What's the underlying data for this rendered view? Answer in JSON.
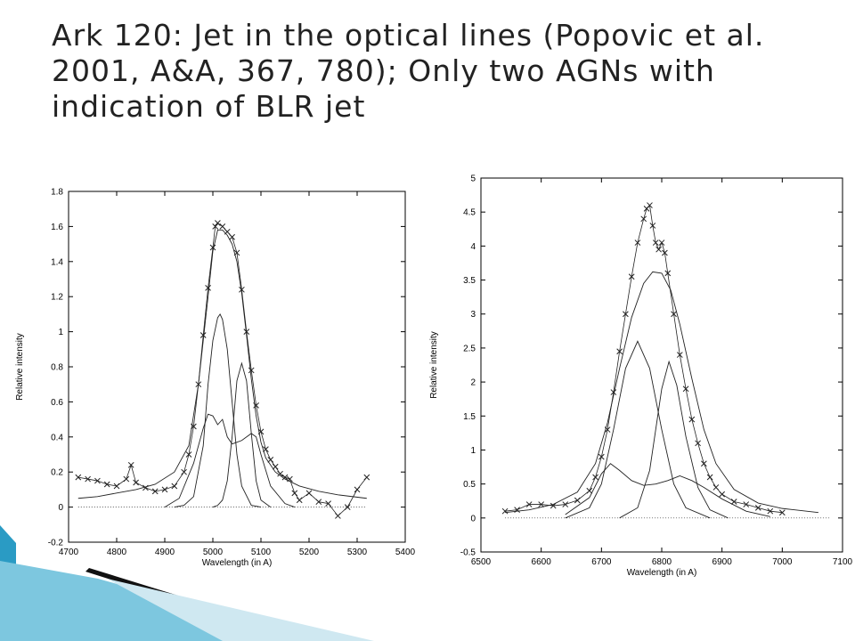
{
  "slide": {
    "title": "Ark 120: Jet in the optical lines (Popovic et al. 2001, A&A, 367, 780); Only two AGNs with indication of BLR jet"
  },
  "colors": {
    "title": "#222222",
    "accent_teal": "#2a9bc4",
    "accent_light": "#6fc3dc",
    "plot_line": "#222222"
  },
  "chart_data": [
    {
      "type": "line",
      "id": "left-hbeta",
      "xlabel": "Wavelength (in A)",
      "ylabel": "Relative intensity",
      "xlim": [
        4700,
        5400
      ],
      "ylim": [
        -0.2,
        1.8
      ],
      "xticks": [
        4700,
        4800,
        4900,
        5000,
        5100,
        5200,
        5300,
        5400
      ],
      "yticks": [
        -0.2,
        0,
        0.2,
        0.4,
        0.6,
        0.8,
        1,
        1.2,
        1.4,
        1.6,
        1.8
      ],
      "grid": false,
      "series": [
        {
          "style": "markers-x",
          "x": [
            4720,
            4740,
            4760,
            4780,
            4800,
            4820,
            4830,
            4840,
            4860,
            4880,
            4900,
            4920,
            4940,
            4950,
            4960,
            4970,
            4980,
            4990,
            5000,
            5005,
            5010,
            5020,
            5030,
            5040,
            5050,
            5060,
            5070,
            5080,
            5090,
            5100,
            5110,
            5120,
            5130,
            5140,
            5150,
            5160,
            5170,
            5180,
            5200,
            5220,
            5240,
            5260,
            5280,
            5300,
            5320
          ],
          "y": [
            0.17,
            0.16,
            0.15,
            0.13,
            0.12,
            0.16,
            0.24,
            0.14,
            0.11,
            0.09,
            0.1,
            0.12,
            0.2,
            0.3,
            0.46,
            0.7,
            0.98,
            1.25,
            1.48,
            1.6,
            1.62,
            1.6,
            1.57,
            1.54,
            1.45,
            1.24,
            1.0,
            0.78,
            0.58,
            0.43,
            0.33,
            0.27,
            0.23,
            0.19,
            0.17,
            0.16,
            0.08,
            0.04,
            0.08,
            0.03,
            0.02,
            -0.05,
            0.0,
            0.1,
            0.17
          ]
        },
        {
          "style": "solid",
          "x": [
            4720,
            4760,
            4800,
            4840,
            4880,
            4920,
            4950,
            4970,
            4990,
            5000,
            5010,
            5020,
            5030,
            5040,
            5050,
            5060,
            5070,
            5080,
            5090,
            5100,
            5110,
            5130,
            5150,
            5180,
            5220,
            5260,
            5320
          ],
          "y": [
            0.05,
            0.06,
            0.08,
            0.1,
            0.13,
            0.2,
            0.35,
            0.7,
            1.2,
            1.46,
            1.58,
            1.58,
            1.55,
            1.5,
            1.4,
            1.22,
            0.98,
            0.73,
            0.52,
            0.37,
            0.28,
            0.2,
            0.16,
            0.12,
            0.09,
            0.07,
            0.05
          ]
        },
        {
          "style": "solid",
          "x": [
            4920,
            4940,
            4960,
            4980,
            4990,
            5000,
            5010,
            5015,
            5020,
            5030,
            5040,
            5050,
            5060,
            5080,
            5100
          ],
          "y": [
            0.0,
            0.01,
            0.06,
            0.35,
            0.7,
            0.95,
            1.08,
            1.1,
            1.07,
            0.9,
            0.6,
            0.3,
            0.12,
            0.01,
            0.0
          ]
        },
        {
          "style": "solid",
          "x": [
            5000,
            5010,
            5020,
            5030,
            5040,
            5050,
            5060,
            5070,
            5080,
            5090,
            5100,
            5120
          ],
          "y": [
            0.0,
            0.01,
            0.04,
            0.15,
            0.4,
            0.72,
            0.82,
            0.72,
            0.42,
            0.15,
            0.04,
            0.0
          ]
        },
        {
          "style": "solid",
          "x": [
            4900,
            4930,
            4960,
            4980,
            4990,
            5000,
            5010,
            5020,
            5030,
            5040,
            5060,
            5080,
            5090,
            5100,
            5120,
            5150,
            5170
          ],
          "y": [
            0.0,
            0.05,
            0.25,
            0.45,
            0.53,
            0.52,
            0.47,
            0.5,
            0.4,
            0.36,
            0.38,
            0.42,
            0.4,
            0.3,
            0.12,
            0.02,
            0.0
          ]
        },
        {
          "style": "dotted",
          "x": [
            4720,
            5320
          ],
          "y": [
            0.0,
            0.0
          ]
        }
      ]
    },
    {
      "type": "line",
      "id": "right-halpha",
      "xlabel": "Wavelength (in A)",
      "ylabel": "Relative intensity",
      "xlim": [
        6500,
        7100
      ],
      "ylim": [
        -0.5,
        5
      ],
      "xticks": [
        6500,
        6600,
        6700,
        6800,
        6900,
        7000,
        7100
      ],
      "yticks": [
        -0.5,
        0,
        0.5,
        1,
        1.5,
        2,
        2.5,
        3,
        3.5,
        4,
        4.5,
        5
      ],
      "grid": false,
      "series": [
        {
          "style": "markers-x",
          "x": [
            6540,
            6560,
            6580,
            6600,
            6620,
            6640,
            6660,
            6680,
            6690,
            6700,
            6710,
            6720,
            6730,
            6740,
            6750,
            6760,
            6770,
            6775,
            6780,
            6785,
            6790,
            6795,
            6800,
            6805,
            6810,
            6820,
            6830,
            6840,
            6850,
            6860,
            6870,
            6880,
            6890,
            6900,
            6920,
            6940,
            6960,
            6980,
            7000
          ],
          "y": [
            0.1,
            0.12,
            0.2,
            0.2,
            0.18,
            0.2,
            0.26,
            0.4,
            0.6,
            0.9,
            1.3,
            1.85,
            2.45,
            3.0,
            3.55,
            4.05,
            4.4,
            4.55,
            4.6,
            4.3,
            4.05,
            3.95,
            4.05,
            3.9,
            3.6,
            3.0,
            2.4,
            1.9,
            1.45,
            1.1,
            0.8,
            0.6,
            0.45,
            0.35,
            0.24,
            0.2,
            0.15,
            0.1,
            0.08
          ]
        },
        {
          "style": "solid",
          "x": [
            6540,
            6580,
            6620,
            6660,
            6690,
            6710,
            6730,
            6750,
            6770,
            6785,
            6800,
            6815,
            6830,
            6850,
            6870,
            6890,
            6920,
            6960,
            7000,
            7060
          ],
          "y": [
            0.08,
            0.12,
            0.2,
            0.38,
            0.8,
            1.4,
            2.2,
            2.95,
            3.45,
            3.62,
            3.6,
            3.35,
            2.85,
            2.05,
            1.3,
            0.8,
            0.42,
            0.22,
            0.14,
            0.08
          ]
        },
        {
          "style": "solid",
          "x": [
            6640,
            6680,
            6700,
            6720,
            6740,
            6760,
            6780,
            6800,
            6820,
            6840,
            6880
          ],
          "y": [
            0.0,
            0.15,
            0.5,
            1.3,
            2.2,
            2.6,
            2.2,
            1.3,
            0.5,
            0.15,
            0.0
          ]
        },
        {
          "style": "solid",
          "x": [
            6730,
            6760,
            6780,
            6790,
            6800,
            6812,
            6825,
            6840,
            6860,
            6880,
            6910
          ],
          "y": [
            0.0,
            0.15,
            0.7,
            1.3,
            1.9,
            2.3,
            1.95,
            1.2,
            0.45,
            0.12,
            0.0
          ]
        },
        {
          "style": "solid",
          "x": [
            6640,
            6680,
            6700,
            6715,
            6730,
            6750,
            6770,
            6790,
            6810,
            6830,
            6850,
            6870,
            6900,
            6940,
            6980
          ],
          "y": [
            0.05,
            0.3,
            0.65,
            0.8,
            0.7,
            0.55,
            0.48,
            0.5,
            0.55,
            0.62,
            0.55,
            0.45,
            0.28,
            0.1,
            0.02
          ]
        },
        {
          "style": "dotted",
          "x": [
            6540,
            7080
          ],
          "y": [
            0.0,
            0.0
          ]
        }
      ]
    }
  ]
}
